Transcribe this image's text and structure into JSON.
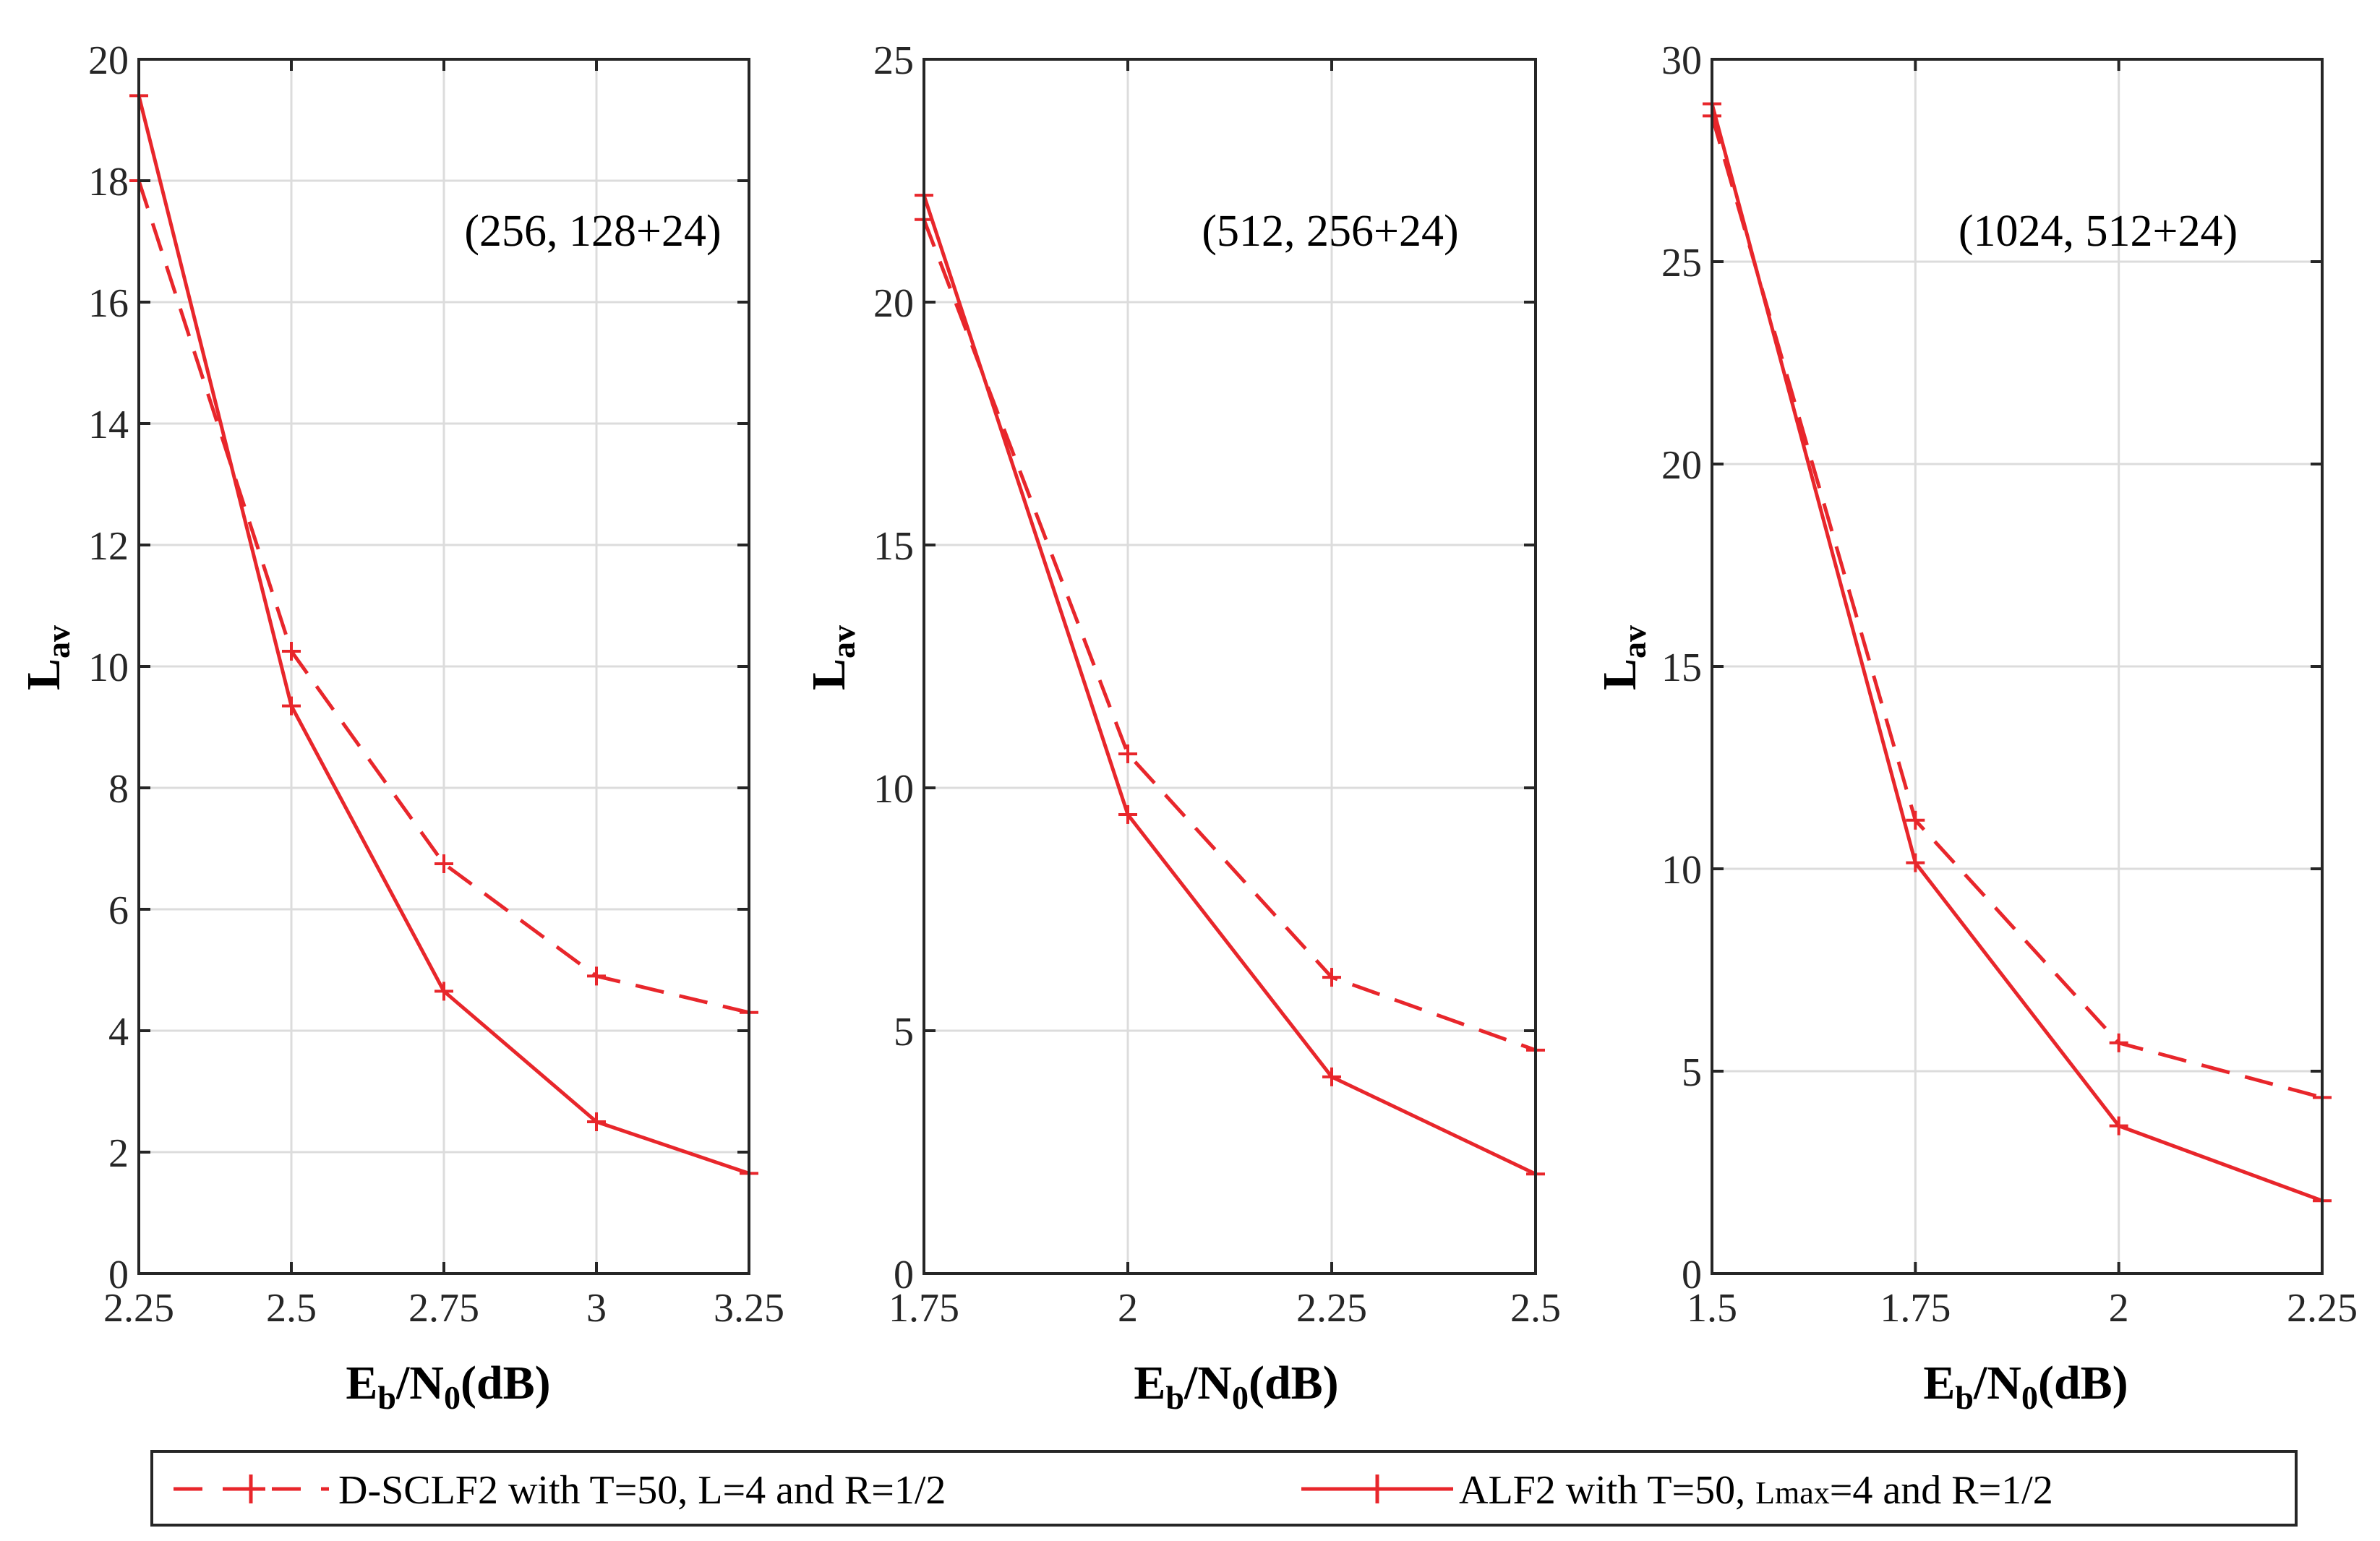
{
  "figure": {
    "colors": {
      "series": "#e8262b",
      "axes": "#262626",
      "grid": "#dcdcdc"
    },
    "legend": {
      "position": "bottom",
      "entries": [
        {
          "label": "D-SCLF2 with T=50, L=4 and R=1/2",
          "style": "dashed"
        },
        {
          "label_prefix": "ALF2 with T=50, ",
          "label_sub": "Lmax",
          "label_suffix": "=4 and R=1/2",
          "style": "solid"
        }
      ]
    }
  },
  "chart_data": [
    {
      "type": "line",
      "annotation": "(256, 128+24)",
      "xlabel": {
        "main": "E",
        "sub1": "b",
        "mid": "/N",
        "sub2": "0",
        "tail": "(dB)"
      },
      "ylabel": {
        "main": "L",
        "sub": "av"
      },
      "xlim": [
        2.25,
        3.25
      ],
      "ylim": [
        0,
        20
      ],
      "xticks": [
        2.25,
        2.5,
        2.75,
        3,
        3.25
      ],
      "xtick_labels": [
        "2.25",
        "2.5",
        "2.75",
        "3",
        "3.25"
      ],
      "yticks": [
        0,
        2,
        4,
        6,
        8,
        10,
        12,
        14,
        16,
        18,
        20
      ],
      "ytick_labels": [
        "0",
        "2",
        "4",
        "6",
        "8",
        "10",
        "12",
        "14",
        "16",
        "18",
        "20"
      ],
      "x": [
        2.25,
        2.5,
        2.75,
        3,
        3.25
      ],
      "series": [
        {
          "name": "D-SCLF2",
          "style": "dashed",
          "values": [
            18.0,
            10.25,
            6.75,
            4.9,
            4.3
          ]
        },
        {
          "name": "ALF2",
          "style": "solid",
          "values": [
            19.4,
            9.35,
            4.65,
            2.5,
            1.65
          ]
        }
      ]
    },
    {
      "type": "line",
      "annotation": "(512, 256+24)",
      "xlabel": {
        "main": "E",
        "sub1": "b",
        "mid": "/N",
        "sub2": "0",
        "tail": "(dB)"
      },
      "ylabel": {
        "main": "L",
        "sub": "av"
      },
      "xlim": [
        1.75,
        2.5
      ],
      "ylim": [
        0,
        25
      ],
      "xticks": [
        1.75,
        2,
        2.25,
        2.5
      ],
      "xtick_labels": [
        "1.75",
        "2",
        "2.25",
        "2.5"
      ],
      "yticks": [
        0,
        5,
        10,
        15,
        20,
        25
      ],
      "ytick_labels": [
        "0",
        "5",
        "10",
        "15",
        "20",
        "25"
      ],
      "x": [
        1.75,
        2,
        2.25,
        2.5
      ],
      "series": [
        {
          "name": "D-SCLF2",
          "style": "dashed",
          "values": [
            21.7,
            10.7,
            6.1,
            4.6
          ]
        },
        {
          "name": "ALF2",
          "style": "solid",
          "values": [
            22.2,
            9.45,
            4.05,
            2.05
          ]
        }
      ]
    },
    {
      "type": "line",
      "annotation": "(1024, 512+24)",
      "xlabel": {
        "main": "E",
        "sub1": "b",
        "mid": "/N",
        "sub2": "0",
        "tail": "(dB)"
      },
      "ylabel": {
        "main": "L",
        "sub": "av"
      },
      "xlim": [
        1.5,
        2.25
      ],
      "ylim": [
        0,
        30
      ],
      "xticks": [
        1.5,
        1.75,
        2,
        2.25
      ],
      "xtick_labels": [
        "1.5",
        "1.75",
        "2",
        "2.25"
      ],
      "yticks": [
        0,
        5,
        10,
        15,
        20,
        25,
        30
      ],
      "ytick_labels": [
        "0",
        "5",
        "10",
        "15",
        "20",
        "25",
        "30"
      ],
      "x": [
        1.5,
        1.75,
        2,
        2.25
      ],
      "series": [
        {
          "name": "D-SCLF2",
          "style": "dashed",
          "values": [
            28.6,
            11.2,
            5.7,
            4.35
          ]
        },
        {
          "name": "ALF2",
          "style": "solid",
          "values": [
            28.9,
            10.15,
            3.65,
            1.8
          ]
        }
      ]
    }
  ]
}
